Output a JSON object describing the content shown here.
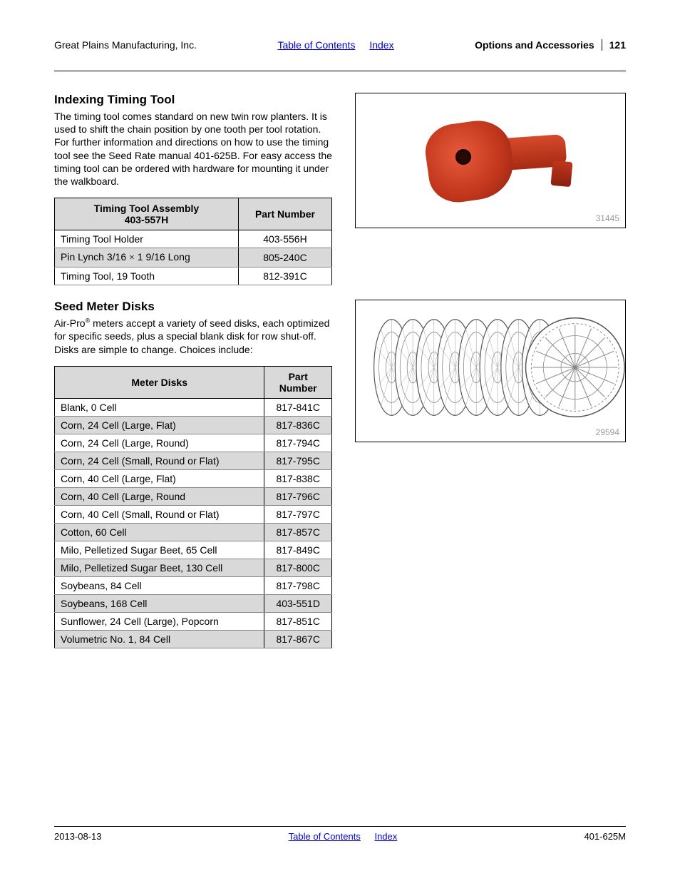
{
  "header": {
    "company": "Great Plains Manufacturing, Inc.",
    "toc_link": "Table of Contents",
    "index_link": "Index",
    "section": "Options and Accessories",
    "page_number": "121"
  },
  "section1": {
    "title": "Indexing Timing Tool",
    "body": "The timing tool comes standard on new twin row planters. It is used to shift the chain position by one tooth per tool rotation. For further information and directions on how to use the timing tool see the Seed Rate manual 401-625B. For easy access the timing tool can be ordered with hardware for mounting it under the walkboard.",
    "table": {
      "header_col1_line1": "Timing Tool Assembly",
      "header_col1_line2": "403-557H",
      "header_col2": "Part Number",
      "rows": [
        {
          "name": "Timing Tool Holder",
          "part": "403-556H"
        },
        {
          "name": "Pin Lynch 3/16 × 1 9/16 Long",
          "part": "805-240C"
        },
        {
          "name": "Timing Tool, 19 Tooth",
          "part": "812-391C"
        }
      ]
    },
    "figure_id": "31445"
  },
  "section2": {
    "title": "Seed Meter Disks",
    "body_pre": "Air-Pro",
    "body_post": " meters accept a variety of seed disks, each optimized for specific seeds, plus a special blank disk for row shut-off. Disks are simple to change. Choices include:",
    "reg_mark": "®",
    "table": {
      "header_col1": "Meter Disks",
      "header_col2_line1": "Part",
      "header_col2_line2": "Number",
      "rows": [
        {
          "name": "Blank, 0 Cell",
          "part": "817-841C"
        },
        {
          "name": "Corn, 24 Cell (Large, Flat)",
          "part": "817-836C"
        },
        {
          "name": "Corn, 24 Cell (Large, Round)",
          "part": "817-794C"
        },
        {
          "name": "Corn, 24 Cell (Small, Round or Flat)",
          "part": "817-795C"
        },
        {
          "name": "Corn, 40 Cell (Large, Flat)",
          "part": "817-838C"
        },
        {
          "name": "Corn, 40 Cell (Large, Round",
          "part": "817-796C"
        },
        {
          "name": "Corn, 40 Cell (Small, Round or Flat)",
          "part": "817-797C"
        },
        {
          "name": "Cotton, 60 Cell",
          "part": "817-857C"
        },
        {
          "name": "Milo, Pelletized Sugar Beet, 65 Cell",
          "part": "817-849C"
        },
        {
          "name": "Milo, Pelletized Sugar Beet, 130 Cell",
          "part": "817-800C"
        },
        {
          "name": "Soybeans, 84 Cell",
          "part": "817-798C"
        },
        {
          "name": "Soybeans, 168 Cell",
          "part": "403-551D"
        },
        {
          "name": "Sunflower, 24 Cell (Large), Popcorn",
          "part": "817-851C"
        },
        {
          "name": "Volumetric No. 1, 84 Cell",
          "part": "817-867C"
        }
      ]
    },
    "figure_id": "29594"
  },
  "footer": {
    "date": "2013-08-13",
    "toc_link": "Table of Contents",
    "index_link": "Index",
    "doc_number": "401-625M"
  },
  "colors": {
    "link": "#0000cc",
    "table_header_bg": "#d9d9d9",
    "figure_caption": "#999999",
    "tool_red": "#c0361c"
  }
}
